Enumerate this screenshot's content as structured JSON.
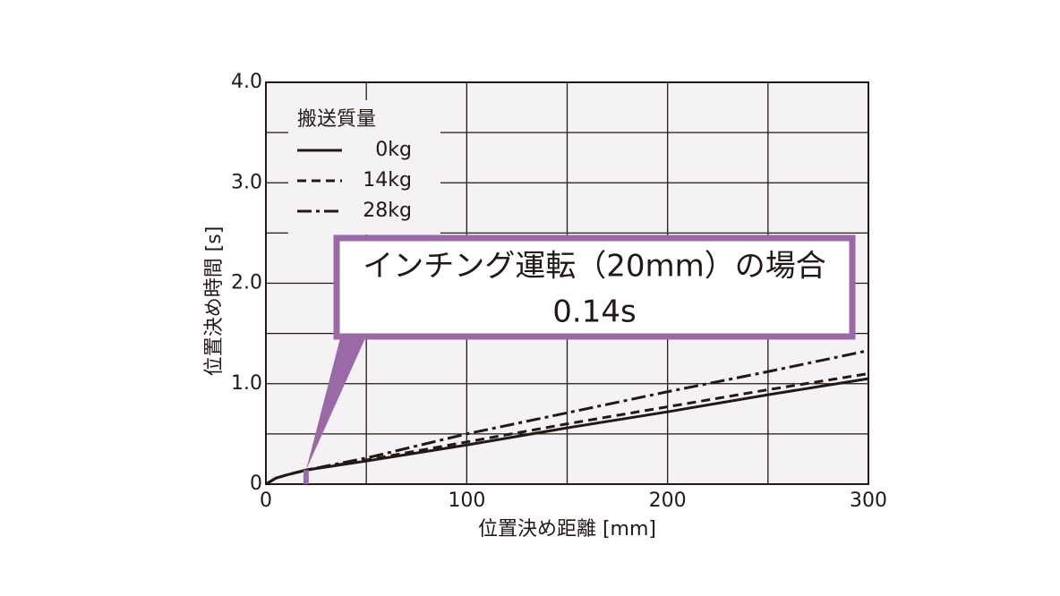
{
  "chart_data": {
    "type": "line",
    "x_label": "位置決め距離 [mm]",
    "y_label": "位置決め時間 [s]",
    "x": [
      0,
      5,
      10,
      20,
      50,
      100,
      150,
      200,
      250,
      300
    ],
    "series": [
      {
        "name": "0kg",
        "color": "#231815",
        "dash": "solid",
        "values": [
          0,
          0.06,
          0.09,
          0.14,
          0.23,
          0.39,
          0.56,
          0.72,
          0.89,
          1.05
        ]
      },
      {
        "name": "14kg",
        "color": "#231815",
        "dash": "dashed",
        "values": [
          0,
          0.06,
          0.09,
          0.14,
          0.24,
          0.42,
          0.6,
          0.77,
          0.94,
          1.1
        ]
      },
      {
        "name": "28kg",
        "color": "#231815",
        "dash": "dashdot",
        "values": [
          0,
          0.06,
          0.09,
          0.14,
          0.26,
          0.5,
          0.71,
          0.92,
          1.12,
          1.33
        ]
      }
    ],
    "legend_title": "搬送質量",
    "legend_position": "upper left",
    "xlim": [
      0,
      300
    ],
    "ylim": [
      0,
      4
    ],
    "xticks": [
      0,
      100,
      200,
      300
    ],
    "yticks": [
      0,
      {
        "value": 1,
        "label": "1.0"
      },
      {
        "value": 2,
        "label": "2.0"
      },
      {
        "value": 3,
        "label": "3.0"
      },
      {
        "value": 4,
        "label": "4.0"
      }
    ],
    "xgrid": [
      50,
      100,
      150,
      200,
      250
    ],
    "ygrid": [
      0.5,
      1,
      1.5,
      2,
      2.5,
      3,
      3.5
    ],
    "grid": true,
    "annotation": {
      "text": "インチング運転（20mm）の場合",
      "value_text": "0.14s",
      "x": 20,
      "y": 0.14,
      "color": "#9b6aa6"
    }
  }
}
